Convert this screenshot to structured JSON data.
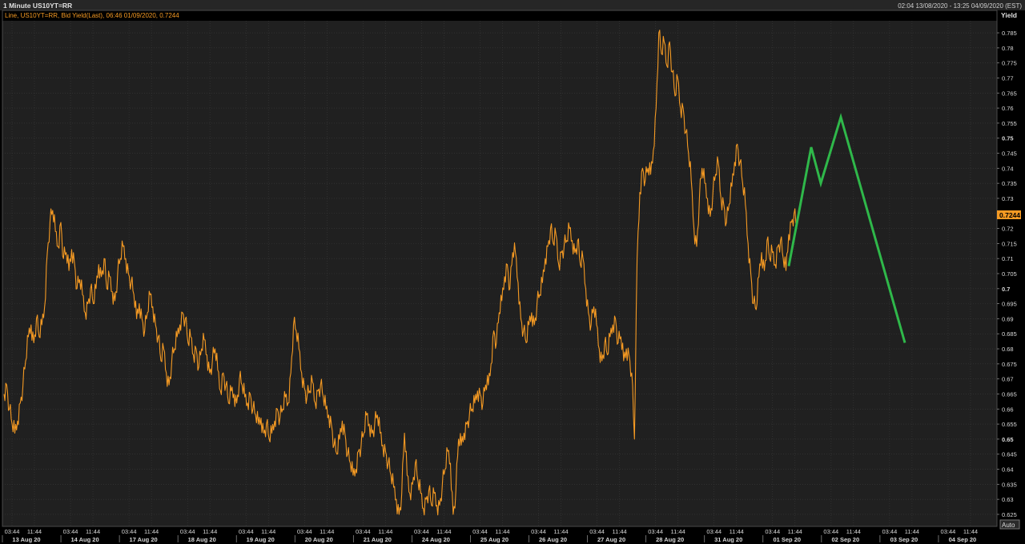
{
  "header": {
    "title": "1 Minute US10YT=RR",
    "range": "02:04 13/08/2020 - 13:25 04/09/2020 (EST)"
  },
  "legend": {
    "label": "Line, US10YT=RR, Bid Yield(Last), 06:46 01/09/2020, 0.7244"
  },
  "axis": {
    "y_title": "Yield",
    "auto_label": "Auto",
    "last_value_label": "0.7244"
  },
  "colors": {
    "background": "#000000",
    "plot": "#202020",
    "grid": "#3a3a3a",
    "series": "#f59a23",
    "projection": "#2fb84a",
    "text": "#d8d8d8"
  },
  "chart_data": {
    "type": "line",
    "title": "",
    "xlabel": "",
    "ylabel": "Yield",
    "ylim": [
      0.621,
      0.789
    ],
    "yticks": [
      0.625,
      0.63,
      0.635,
      0.64,
      0.645,
      0.65,
      0.655,
      0.66,
      0.665,
      0.67,
      0.675,
      0.68,
      0.685,
      0.69,
      0.695,
      0.7,
      0.705,
      0.71,
      0.715,
      0.72,
      0.725,
      0.73,
      0.735,
      0.74,
      0.745,
      0.75,
      0.755,
      0.76,
      0.765,
      0.77,
      0.775,
      0.78,
      0.785
    ],
    "ytick_labels": [
      "0.625",
      "0.63",
      "0.635",
      "0.64",
      "0.645",
      "0.65",
      "0.655",
      "0.66",
      "0.665",
      "0.67",
      "0.675",
      "0.68",
      "0.685",
      "0.69",
      "0.695",
      "0.7",
      "0.705",
      "0.71",
      "0.715",
      "0.72",
      "0.725",
      "0.73",
      "0.735",
      "0.74",
      "0.745",
      "0.75",
      "0.755",
      "0.76",
      "0.765",
      "0.77",
      "0.775",
      "0.78",
      "0.785"
    ],
    "day_labels": [
      "13 Aug 20",
      "14 Aug 20",
      "17 Aug 20",
      "18 Aug 20",
      "19 Aug 20",
      "20 Aug 20",
      "21 Aug 20",
      "24 Aug 20",
      "25 Aug 20",
      "26 Aug 20",
      "27 Aug 20",
      "28 Aug 20",
      "31 Aug 20",
      "01 Sep 20",
      "02 Sep 20",
      "03 Sep 20",
      "04 Sep 20"
    ],
    "time_labels": [
      "03:44",
      "11:44"
    ],
    "series": [
      {
        "values": [
          0.665,
          0.668,
          0.66,
          0.655,
          0.652,
          0.656,
          0.662,
          0.668,
          0.676,
          0.684,
          0.688,
          0.682,
          0.69,
          0.684,
          0.688,
          0.694,
          0.712,
          0.722,
          0.726,
          0.719,
          0.714,
          0.722,
          0.71,
          0.712,
          0.706,
          0.713,
          0.709,
          0.7,
          0.703,
          0.698,
          0.692,
          0.695,
          0.7,
          0.695,
          0.7,
          0.708,
          0.704,
          0.71,
          0.7,
          0.704,
          0.699,
          0.696,
          0.705,
          0.71,
          0.714,
          0.71,
          0.705,
          0.702,
          0.698,
          0.69,
          0.695,
          0.69,
          0.686,
          0.692,
          0.698,
          0.694,
          0.688,
          0.684,
          0.676,
          0.68,
          0.672,
          0.668,
          0.676,
          0.68,
          0.684,
          0.688,
          0.692,
          0.69,
          0.682,
          0.684,
          0.678,
          0.68,
          0.674,
          0.68,
          0.683,
          0.678,
          0.672,
          0.676,
          0.68,
          0.673,
          0.666,
          0.672,
          0.668,
          0.662,
          0.666,
          0.665,
          0.662,
          0.67,
          0.668,
          0.664,
          0.662,
          0.665,
          0.66,
          0.658,
          0.655,
          0.657,
          0.652,
          0.655,
          0.65,
          0.652,
          0.656,
          0.66,
          0.657,
          0.66,
          0.664,
          0.662,
          0.672,
          0.688,
          0.686,
          0.68,
          0.672,
          0.667,
          0.664,
          0.666,
          0.669,
          0.662,
          0.666,
          0.668,
          0.664,
          0.66,
          0.658,
          0.655,
          0.648,
          0.645,
          0.65,
          0.656,
          0.652,
          0.645,
          0.642,
          0.638,
          0.64,
          0.646,
          0.648,
          0.652,
          0.658,
          0.655,
          0.652,
          0.655,
          0.658,
          0.652,
          0.648,
          0.646,
          0.642,
          0.638,
          0.634,
          0.63,
          0.625,
          0.632,
          0.652,
          0.638,
          0.632,
          0.635,
          0.642,
          0.636,
          0.632,
          0.627,
          0.63,
          0.633,
          0.628,
          0.632,
          0.628,
          0.628,
          0.635,
          0.64,
          0.646,
          0.642,
          0.625,
          0.633,
          0.65,
          0.648,
          0.652,
          0.655,
          0.658,
          0.66,
          0.662,
          0.666,
          0.665,
          0.662,
          0.668,
          0.668,
          0.675,
          0.686,
          0.682,
          0.692,
          0.696,
          0.704,
          0.708,
          0.7,
          0.712,
          0.712,
          0.702,
          0.69,
          0.686,
          0.682,
          0.688,
          0.692,
          0.688,
          0.695,
          0.698,
          0.702,
          0.71,
          0.714,
          0.72,
          0.715,
          0.718,
          0.708,
          0.712,
          0.714,
          0.716,
          0.72,
          0.716,
          0.712,
          0.716,
          0.708,
          0.71,
          0.7,
          0.692,
          0.688,
          0.694,
          0.688,
          0.68,
          0.676,
          0.682,
          0.678,
          0.684,
          0.688,
          0.69,
          0.682,
          0.684,
          0.676,
          0.68,
          0.678,
          0.672,
          0.65,
          0.71,
          0.732,
          0.74,
          0.736,
          0.74,
          0.738,
          0.746,
          0.76,
          0.785,
          0.778,
          0.782,
          0.774,
          0.782,
          0.772,
          0.764,
          0.77,
          0.76,
          0.76,
          0.752,
          0.745,
          0.736,
          0.72,
          0.714,
          0.73,
          0.74,
          0.735,
          0.73,
          0.724,
          0.732,
          0.738,
          0.742,
          0.73,
          0.728,
          0.722,
          0.728,
          0.734,
          0.742,
          0.748,
          0.742,
          0.735,
          0.728,
          0.715,
          0.705,
          0.695,
          0.693,
          0.704,
          0.712,
          0.706,
          0.716,
          0.71,
          0.712,
          0.708,
          0.714,
          0.716,
          0.71,
          0.706,
          0.718,
          0.722,
          0.725,
          0.72
        ]
      },
      {
        "values": [
          0.7075,
          0.747,
          0.735,
          0.757,
          0.682
        ]
      }
    ]
  }
}
